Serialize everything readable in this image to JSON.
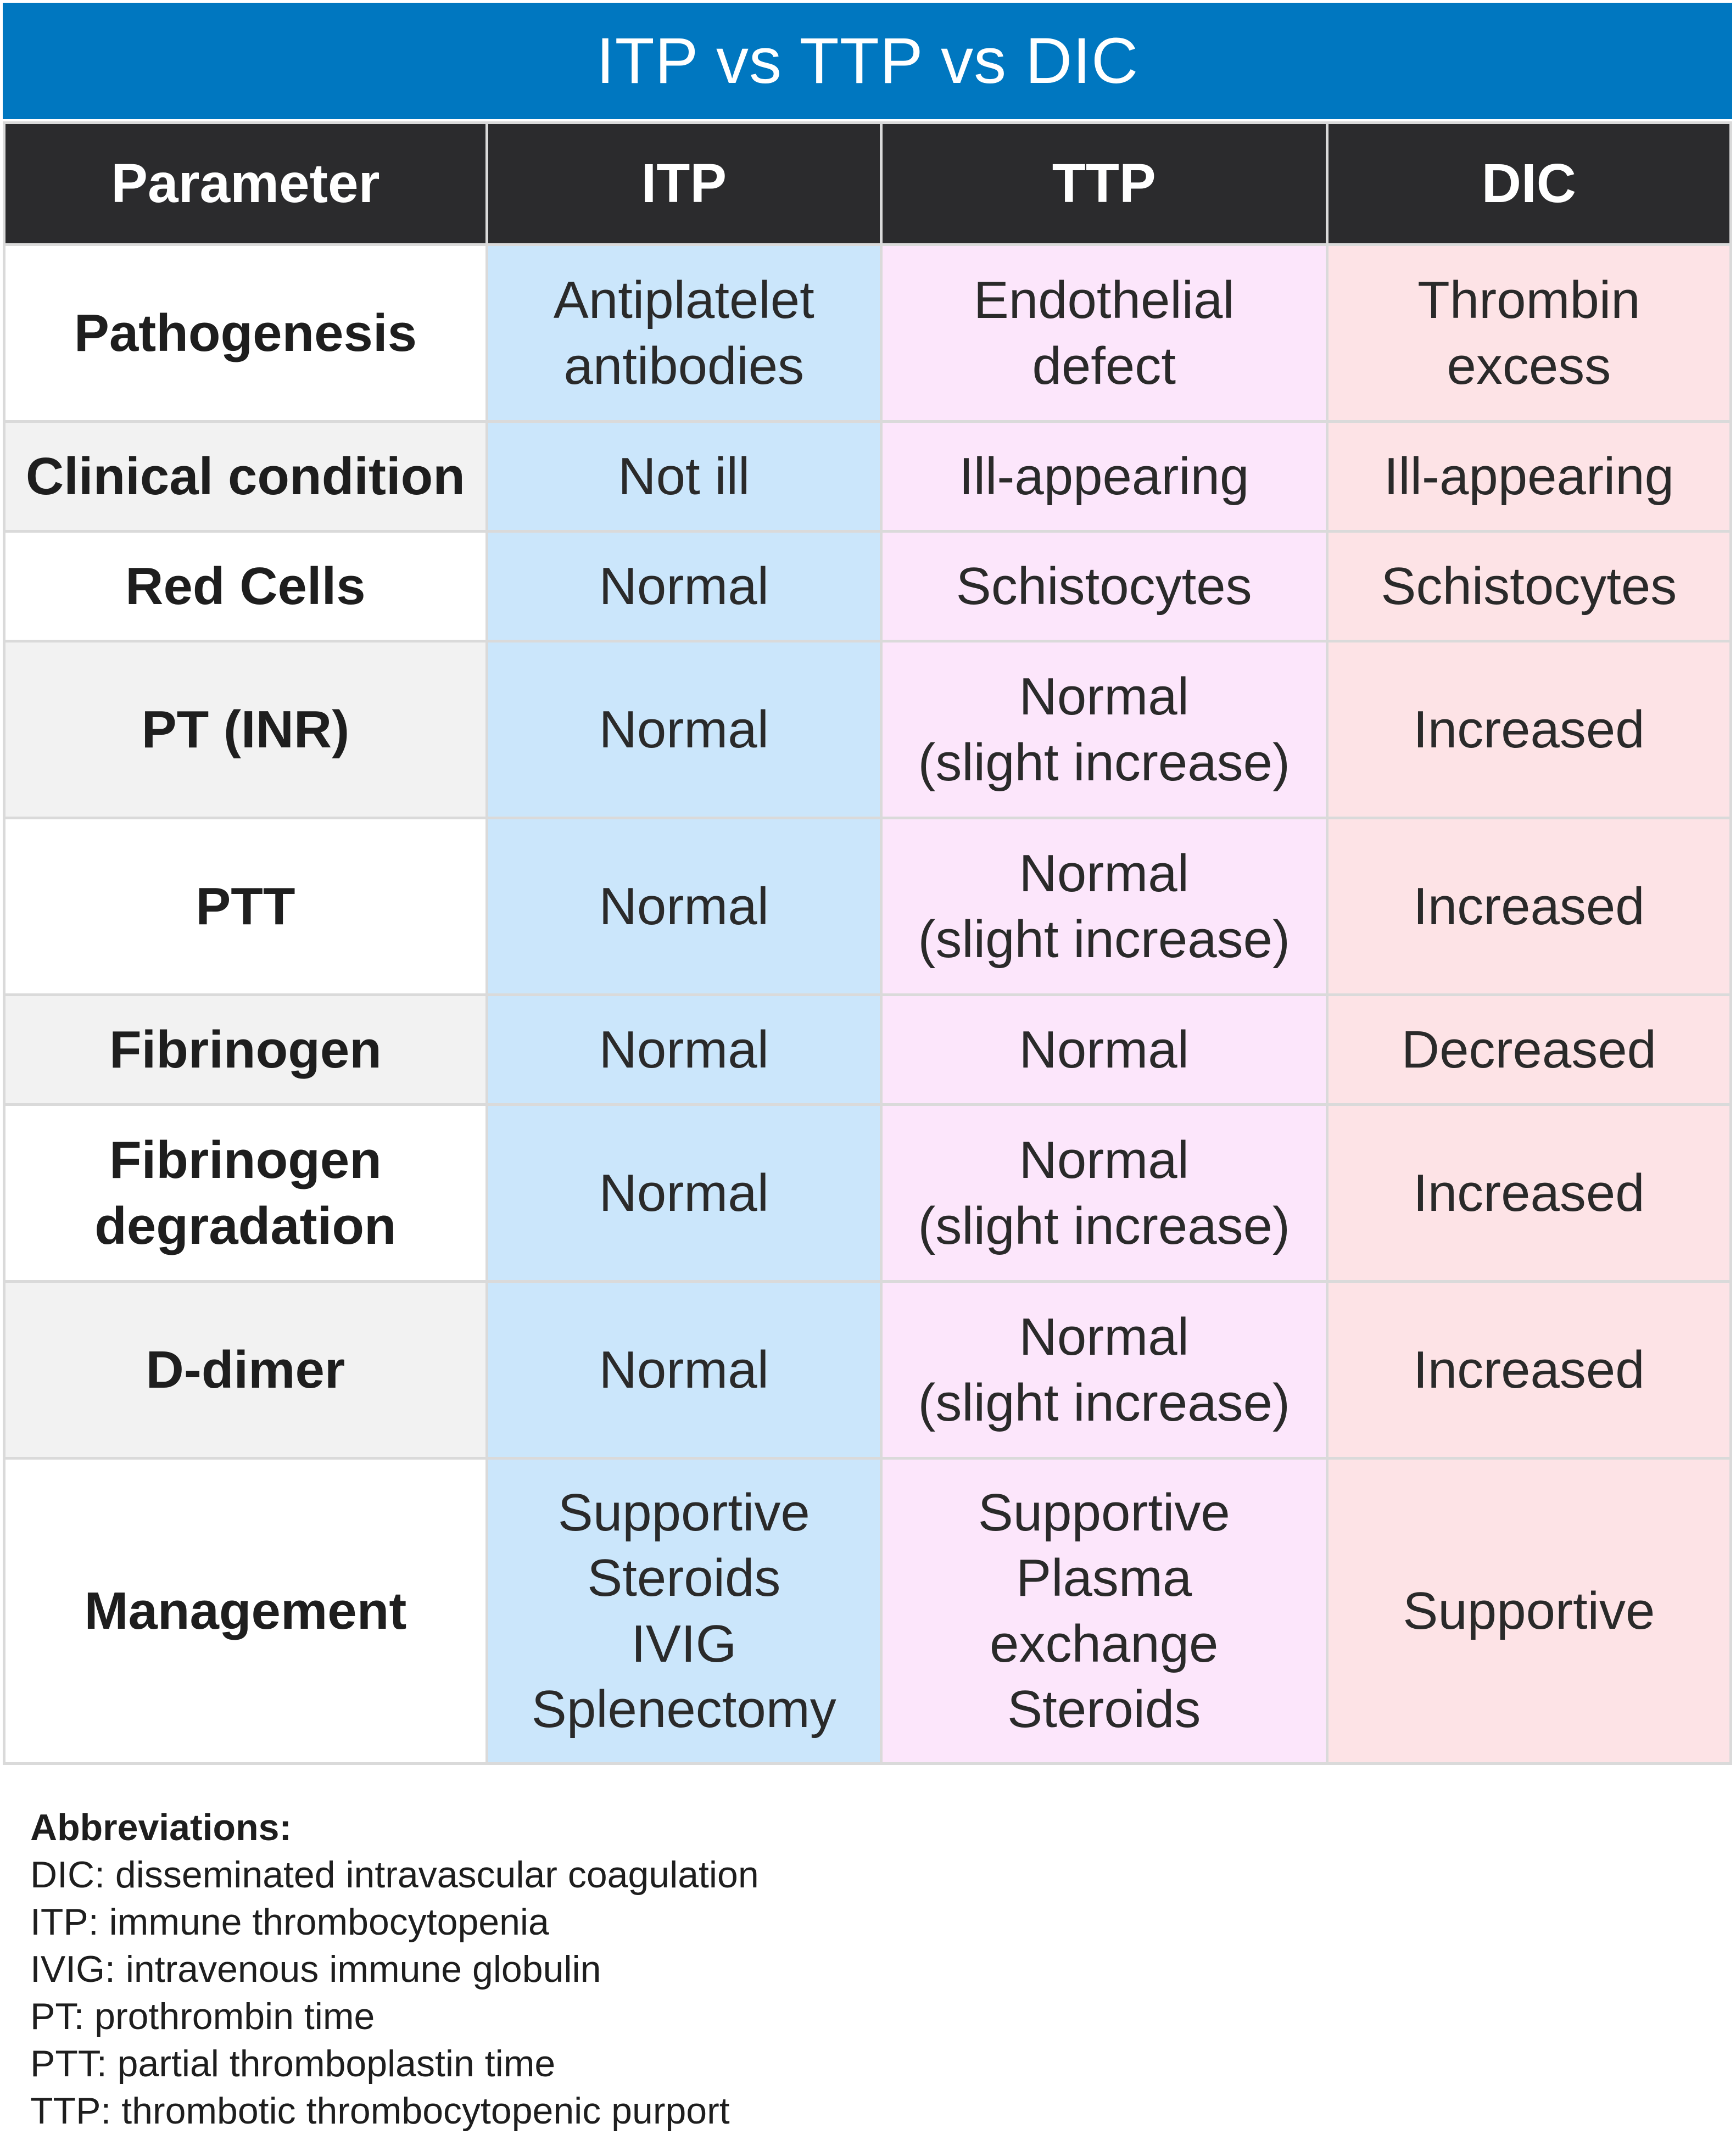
{
  "title": "ITP vs TTP vs DIC",
  "columns": [
    "Parameter",
    "ITP",
    "TTP",
    "DIC"
  ],
  "rows": [
    {
      "parameter": [
        "Pathogenesis"
      ],
      "itp": [
        "Antiplatelet",
        "antibodies"
      ],
      "ttp": [
        "Endothelial",
        "defect"
      ],
      "dic": [
        "Thrombin",
        "excess"
      ]
    },
    {
      "parameter": [
        "Clinical condition"
      ],
      "itp": [
        "Not ill"
      ],
      "ttp": [
        "Ill-appearing"
      ],
      "dic": [
        "Ill-appearing"
      ]
    },
    {
      "parameter": [
        "Red Cells"
      ],
      "itp": [
        "Normal"
      ],
      "ttp": [
        "Schistocytes"
      ],
      "dic": [
        "Schistocytes"
      ]
    },
    {
      "parameter": [
        "PT (INR)"
      ],
      "itp": [
        "Normal"
      ],
      "ttp": [
        "Normal",
        "(slight increase)"
      ],
      "dic": [
        "Increased"
      ]
    },
    {
      "parameter": [
        "PTT"
      ],
      "itp": [
        "Normal"
      ],
      "ttp": [
        "Normal",
        "(slight increase)"
      ],
      "dic": [
        "Increased"
      ]
    },
    {
      "parameter": [
        "Fibrinogen"
      ],
      "itp": [
        "Normal"
      ],
      "ttp": [
        "Normal"
      ],
      "dic": [
        "Decreased"
      ]
    },
    {
      "parameter": [
        "Fibrinogen",
        "degradation"
      ],
      "itp": [
        "Normal"
      ],
      "ttp": [
        "Normal",
        "(slight increase)"
      ],
      "dic": [
        "Increased"
      ]
    },
    {
      "parameter": [
        "D-dimer"
      ],
      "itp": [
        "Normal"
      ],
      "ttp": [
        "Normal",
        "(slight increase)"
      ],
      "dic": [
        "Increased"
      ]
    },
    {
      "parameter": [
        "Management"
      ],
      "itp": [
        "Supportive",
        "Steroids",
        "IVIG",
        "Splenectomy"
      ],
      "ttp": [
        "Supportive",
        "Plasma",
        "exchange",
        "Steroids"
      ],
      "dic": [
        "Supportive"
      ]
    }
  ],
  "abbreviations": {
    "heading": "Abbreviations:",
    "items": [
      "DIC: disseminated intravascular coagulation",
      "ITP: immune thrombocytopenia",
      "IVIG: intravenous immune globulin",
      "PT: prothrombin time",
      "PTT: partial thromboplastin time",
      "TTP: thrombotic thrombocytopenic purport"
    ]
  },
  "colors": {
    "title_bar": "#0077c0",
    "header_row": "#2b2b2d",
    "itp_column": "#cbe6fb",
    "ttp_column": "#fce6fb",
    "dic_column": "#fde3e6",
    "parameter_alt_row": "#f2f2f2"
  }
}
